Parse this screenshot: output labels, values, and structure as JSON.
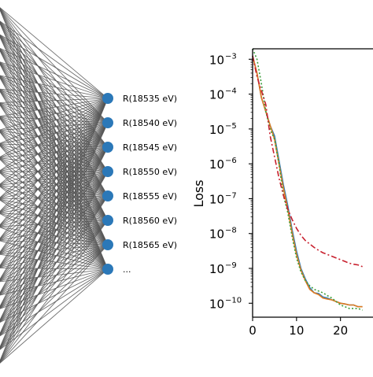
{
  "network": {
    "output_labels": [
      "R(18535 eV)",
      "R(18540 eV)",
      "R(18545 eV)",
      "R(18550 eV)",
      "R(18555 eV)",
      "R(18560 eV)",
      "R(18565 eV)",
      "..."
    ],
    "node_color": "#2b78b8",
    "edge_color": "#555555"
  },
  "chart_data": {
    "type": "line",
    "title": "",
    "xlabel": "",
    "ylabel": "Loss",
    "yscale": "log",
    "xlim": [
      0,
      25
    ],
    "ylim_exponent": [
      -10.4,
      -2.7
    ],
    "x_ticks": [
      "0",
      "10",
      "20"
    ],
    "y_ticks": [
      {
        "base": "10",
        "exp": "−3"
      },
      {
        "base": "10",
        "exp": "−4"
      },
      {
        "base": "10",
        "exp": "−5"
      },
      {
        "base": "10",
        "exp": "−6"
      },
      {
        "base": "10",
        "exp": "−7"
      },
      {
        "base": "10",
        "exp": "−8"
      },
      {
        "base": "10",
        "exp": "−9"
      },
      {
        "base": "10",
        "exp": "−10"
      }
    ],
    "series": [
      {
        "color": "#2e7fbf",
        "style": "solid",
        "x": [
          0,
          1,
          2,
          3,
          4,
          5,
          6,
          7,
          8,
          9,
          10,
          11,
          12,
          13,
          14,
          15,
          16,
          17,
          18,
          19,
          20,
          21,
          22,
          23,
          24,
          25
        ],
        "log10_y": [
          -2.9,
          -3.4,
          -4.1,
          -4.5,
          -4.9,
          -5.2,
          -5.9,
          -6.6,
          -7.2,
          -7.9,
          -8.5,
          -9.0,
          -9.3,
          -9.55,
          -9.7,
          -9.72,
          -9.82,
          -9.85,
          -9.9,
          -9.95,
          -10.0,
          -10.02,
          -10.05,
          -10.05,
          -10.1,
          -10.1
        ]
      },
      {
        "color": "#e07b1f",
        "style": "solid",
        "x": [
          0,
          1,
          2,
          3,
          4,
          5,
          6,
          7,
          8,
          9,
          10,
          11,
          12,
          13,
          14,
          15,
          16,
          17,
          18,
          19,
          20,
          21,
          22,
          23,
          24,
          25
        ],
        "log10_y": [
          -2.9,
          -3.4,
          -4.1,
          -4.5,
          -4.9,
          -5.3,
          -6.0,
          -6.7,
          -7.3,
          -8.0,
          -8.6,
          -9.05,
          -9.35,
          -9.6,
          -9.7,
          -9.75,
          -9.85,
          -9.88,
          -9.9,
          -9.95,
          -10.0,
          -10.02,
          -10.05,
          -10.05,
          -10.1,
          -10.1
        ]
      },
      {
        "color": "#3a9e3a",
        "style": "dotted",
        "x": [
          0,
          1,
          2,
          3,
          4,
          5,
          6,
          7,
          8,
          9,
          10,
          11,
          12,
          13,
          14,
          15,
          16,
          17,
          18,
          19,
          20,
          21,
          22,
          23,
          24,
          25
        ],
        "log10_y": [
          -2.7,
          -3.0,
          -3.7,
          -4.5,
          -5.0,
          -5.3,
          -6.0,
          -6.9,
          -7.4,
          -8.1,
          -8.7,
          -9.1,
          -9.35,
          -9.5,
          -9.6,
          -9.65,
          -9.7,
          -9.78,
          -9.85,
          -9.95,
          -10.05,
          -10.1,
          -10.15,
          -10.15,
          -10.15,
          -10.2
        ]
      },
      {
        "color": "#c8202e",
        "style": "dashdot",
        "x": [
          0,
          1,
          2,
          3,
          4,
          5,
          6,
          7,
          8,
          9,
          10,
          11,
          12,
          13,
          14,
          15,
          16,
          17,
          18,
          19,
          20,
          21,
          22,
          23,
          24,
          25
        ],
        "log10_y": [
          -2.9,
          -3.5,
          -3.9,
          -4.3,
          -5.2,
          -5.8,
          -6.4,
          -6.9,
          -7.3,
          -7.6,
          -7.85,
          -8.05,
          -8.2,
          -8.3,
          -8.4,
          -8.48,
          -8.55,
          -8.6,
          -8.65,
          -8.7,
          -8.75,
          -8.8,
          -8.85,
          -8.88,
          -8.9,
          -8.95
        ]
      }
    ]
  }
}
